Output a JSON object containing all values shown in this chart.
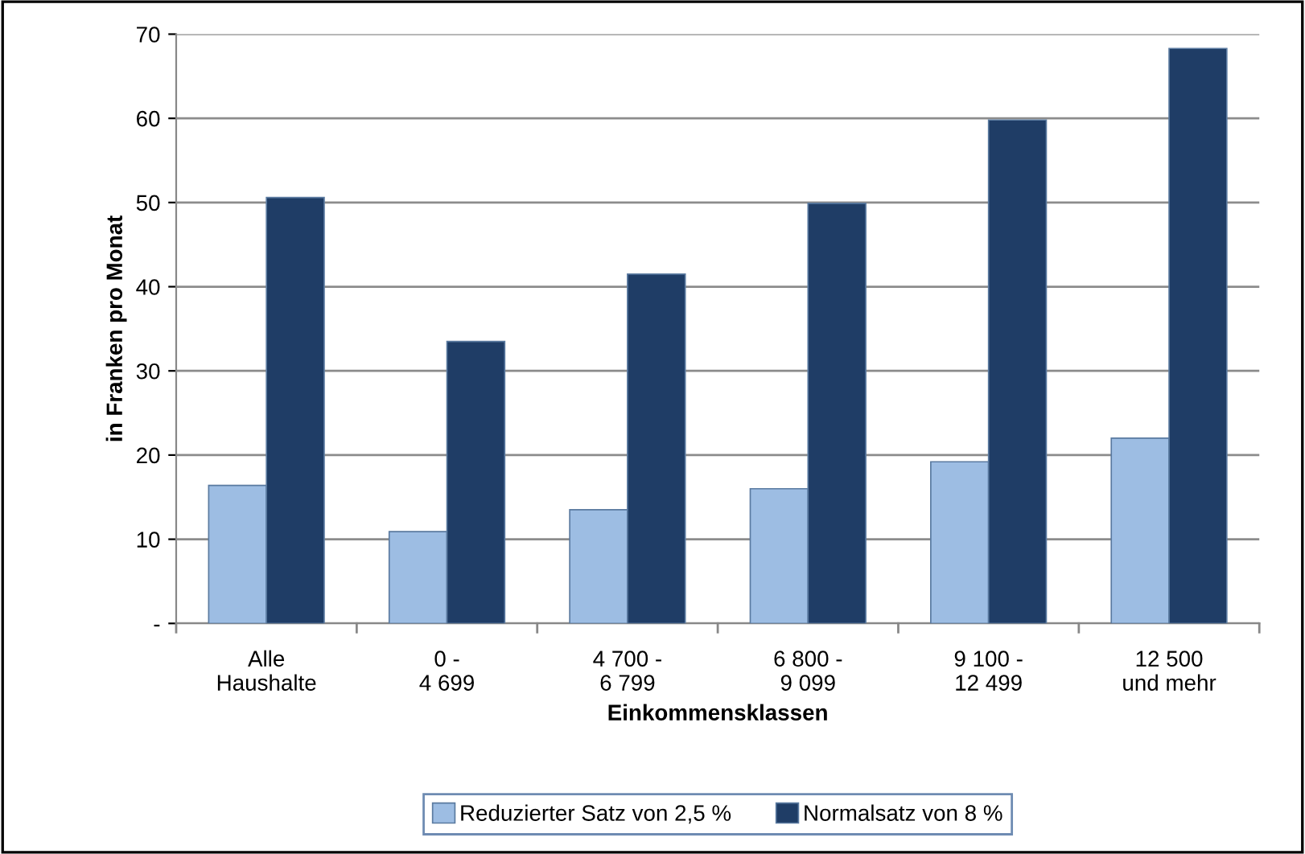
{
  "chart_data": {
    "type": "bar",
    "xlabel": "Einkommensklassen",
    "ylabel": "in Franken pro Monat",
    "categories": [
      "Alle\nHaushalte",
      "0 -\n4 699",
      "4 700 -\n6 799",
      "6 800 -\n9 099",
      "9 100 -\n12 499",
      "12 500\nund mehr"
    ],
    "series": [
      {
        "name": "Reduzierter Satz von 2,5 %",
        "color": "#9dbde3",
        "values": [
          16.4,
          10.9,
          13.5,
          16.0,
          19.2,
          22.0
        ]
      },
      {
        "name": "Normalsatz von 8 %",
        "color": "#1f3d66",
        "values": [
          50.6,
          33.5,
          41.5,
          49.9,
          59.8,
          68.3
        ]
      }
    ],
    "ylim": [
      0,
      70
    ],
    "yticks": [
      {
        "value": 0,
        "label": "-"
      },
      10,
      20,
      30,
      40,
      50,
      60,
      70
    ],
    "grid": "y",
    "legend": "bottom"
  }
}
